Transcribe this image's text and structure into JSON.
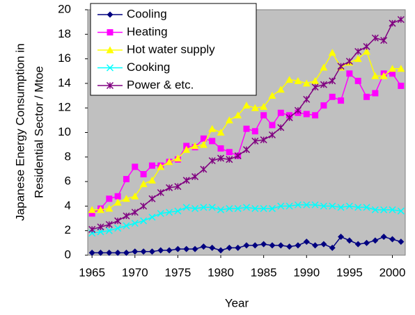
{
  "chart_data": {
    "type": "line",
    "x_label": "Year",
    "y_label": [
      "Japanese Energy Consumption in",
      "Residential Sector / Mtoe"
    ],
    "x": [
      1965,
      1966,
      1967,
      1968,
      1969,
      1970,
      1971,
      1972,
      1973,
      1974,
      1975,
      1976,
      1977,
      1978,
      1979,
      1980,
      1981,
      1982,
      1983,
      1984,
      1985,
      1986,
      1987,
      1988,
      1989,
      1990,
      1991,
      1992,
      1993,
      1994,
      1995,
      1996,
      1997,
      1998,
      1999,
      2000,
      2001
    ],
    "xlim": [
      1964.5,
      2001.5
    ],
    "xticks": [
      1965,
      1970,
      1975,
      1980,
      1985,
      1990,
      1995,
      2000
    ],
    "ylim": [
      0,
      20
    ],
    "yticks": [
      0,
      2,
      4,
      6,
      8,
      10,
      12,
      14,
      16,
      18,
      20
    ],
    "grid": false,
    "legend": "upper-left",
    "series": [
      {
        "name": "Cooling",
        "color": "#000080",
        "marker": "diamond",
        "values": [
          0.2,
          0.2,
          0.2,
          0.2,
          0.2,
          0.3,
          0.3,
          0.3,
          0.4,
          0.4,
          0.5,
          0.5,
          0.5,
          0.7,
          0.6,
          0.4,
          0.6,
          0.6,
          0.8,
          0.8,
          0.9,
          0.8,
          0.8,
          0.7,
          0.8,
          1.1,
          0.8,
          0.9,
          0.6,
          1.5,
          1.2,
          0.9,
          1.0,
          1.2,
          1.5,
          1.3,
          1.1
        ]
      },
      {
        "name": "Heating",
        "color": "#ff00ff",
        "marker": "square",
        "values": [
          3.4,
          3.8,
          4.6,
          4.8,
          6.2,
          7.2,
          6.6,
          7.3,
          7.3,
          7.6,
          7.8,
          8.9,
          8.8,
          9.5,
          9.3,
          8.7,
          8.4,
          8.1,
          10.3,
          10.1,
          11.4,
          10.6,
          11.6,
          11.4,
          11.6,
          11.5,
          11.4,
          12.2,
          12.9,
          12.6,
          14.8,
          14.2,
          12.9,
          13.2,
          14.8,
          14.8,
          13.8
        ]
      },
      {
        "name": "Hot water supply",
        "color": "#ffff00",
        "marker": "triangle",
        "values": [
          3.7,
          3.7,
          3.8,
          4.3,
          4.6,
          4.8,
          5.8,
          6.1,
          7.2,
          7.6,
          7.9,
          8.6,
          8.9,
          9.0,
          10.3,
          10.0,
          11.0,
          11.4,
          12.2,
          12.0,
          12.1,
          13.0,
          13.5,
          14.3,
          14.2,
          14.0,
          14.2,
          15.3,
          16.5,
          15.3,
          15.7,
          16.0,
          16.6,
          14.6,
          14.6,
          15.2,
          15.2
        ]
      },
      {
        "name": "Cooking",
        "color": "#00ffff",
        "marker": "x",
        "values": [
          1.8,
          1.9,
          2.0,
          2.2,
          2.4,
          2.6,
          2.8,
          3.1,
          3.4,
          3.5,
          3.6,
          3.9,
          3.8,
          3.9,
          3.9,
          3.7,
          3.8,
          3.8,
          3.9,
          3.8,
          3.8,
          3.8,
          4.0,
          4.0,
          4.1,
          4.1,
          4.1,
          4.0,
          4.0,
          3.9,
          4.0,
          3.9,
          3.9,
          3.7,
          3.7,
          3.7,
          3.6
        ]
      },
      {
        "name": "Power & etc.",
        "color": "#800080",
        "marker": "star",
        "values": [
          2.1,
          2.3,
          2.5,
          2.8,
          3.2,
          3.5,
          4.0,
          4.6,
          5.1,
          5.5,
          5.6,
          6.1,
          6.4,
          7.0,
          7.7,
          7.9,
          7.8,
          8.1,
          8.6,
          9.3,
          9.4,
          9.8,
          10.4,
          11.2,
          11.8,
          12.7,
          13.7,
          13.9,
          14.2,
          15.4,
          15.8,
          16.6,
          17.0,
          17.7,
          17.5,
          18.9,
          19.2
        ]
      }
    ]
  }
}
